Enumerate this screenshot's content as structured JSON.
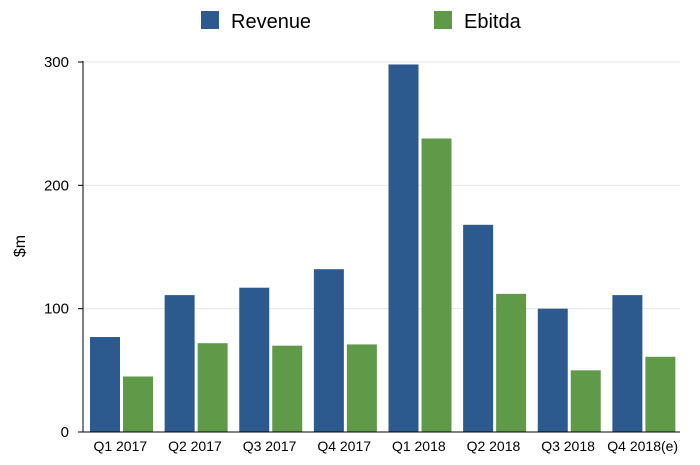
{
  "chart_data": {
    "type": "bar",
    "categories": [
      "Q1 2017",
      "Q2 2017",
      "Q3 2017",
      "Q4 2017",
      "Q1 2018",
      "Q2 2018",
      "Q3 2018",
      "Q4 2018(e)"
    ],
    "series": [
      {
        "name": "Revenue",
        "values": [
          77,
          111,
          117,
          132,
          298,
          168,
          100,
          111
        ],
        "color": "#2d5a8e"
      },
      {
        "name": "Ebitda",
        "values": [
          45,
          72,
          70,
          71,
          238,
          112,
          50,
          61
        ],
        "color": "#5f9a48"
      }
    ],
    "title": "",
    "xlabel": "",
    "ylabel": "$m",
    "ylim": [
      0,
      300
    ],
    "yticks": [
      0,
      100,
      200,
      300
    ],
    "grid": true,
    "legend_position": "top-center"
  }
}
